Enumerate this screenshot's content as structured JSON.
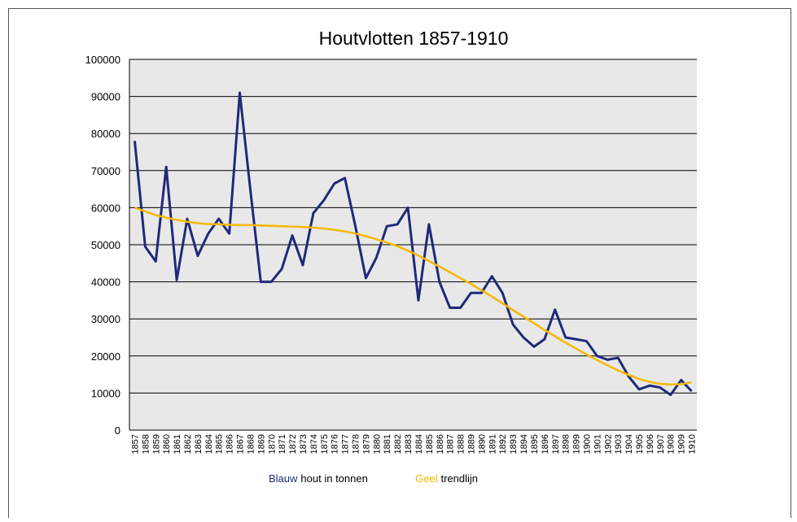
{
  "chart_data": {
    "type": "line",
    "title": "Houtvlotten 1857-1910",
    "categories": [
      "1857",
      "1858",
      "1859",
      "1860",
      "1861",
      "1862",
      "1863",
      "1864",
      "1865",
      "1866",
      "1867",
      "1868",
      "1869",
      "1870",
      "1871",
      "1872",
      "1873",
      "1874",
      "1875",
      "1876",
      "1877",
      "1878",
      "1879",
      "1880",
      "1881",
      "1882",
      "1883",
      "1884",
      "1885",
      "1886",
      "1887",
      "1888",
      "1889",
      "1890",
      "1891",
      "1892",
      "1893",
      "1894",
      "1895",
      "1896",
      "1897",
      "1898",
      "1899",
      "1900",
      "1901",
      "1902",
      "1903",
      "1904",
      "1905",
      "1906",
      "1907",
      "1908",
      "1909",
      "1910"
    ],
    "series": [
      {
        "name_parts": [
          "Blauw",
          "hout in tonnen"
        ],
        "color": "#1f2a7a",
        "values": [
          78000,
          49500,
          45500,
          71000,
          40500,
          57000,
          47000,
          53000,
          57000,
          53000,
          91000,
          65000,
          40000,
          40000,
          43500,
          52500,
          44500,
          58500,
          62000,
          66500,
          68000,
          55000,
          41000,
          46500,
          55000,
          55500,
          60000,
          35000,
          55500,
          40000,
          33000,
          33000,
          37000,
          37000,
          41500,
          37000,
          28500,
          25000,
          22500,
          24500,
          32500,
          25000,
          24500,
          24000,
          20000,
          19000,
          19500,
          14500,
          11000,
          12000,
          11500,
          9500,
          13500,
          10500
        ]
      },
      {
        "name_parts": [
          "Geel",
          "trendlijn"
        ],
        "color": "#f5b800",
        "values": [
          60000,
          59000,
          58000,
          57300,
          56700,
          56200,
          55800,
          55600,
          55500,
          55400,
          55300,
          55300,
          55200,
          55100,
          55000,
          54900,
          54800,
          54600,
          54400,
          54000,
          53600,
          53000,
          52300,
          51500,
          50600,
          49600,
          48400,
          47100,
          45600,
          44100,
          42600,
          41000,
          39400,
          37700,
          36000,
          34200,
          32400,
          30600,
          28800,
          27000,
          25300,
          23600,
          22000,
          20400,
          18900,
          17500,
          16100,
          14900,
          13800,
          13000,
          12500,
          12300,
          12400,
          12900
        ]
      }
    ],
    "ylim": [
      0,
      100000
    ],
    "yticks": [
      0,
      10000,
      20000,
      30000,
      40000,
      50000,
      60000,
      70000,
      80000,
      90000,
      100000
    ],
    "grid": true
  }
}
